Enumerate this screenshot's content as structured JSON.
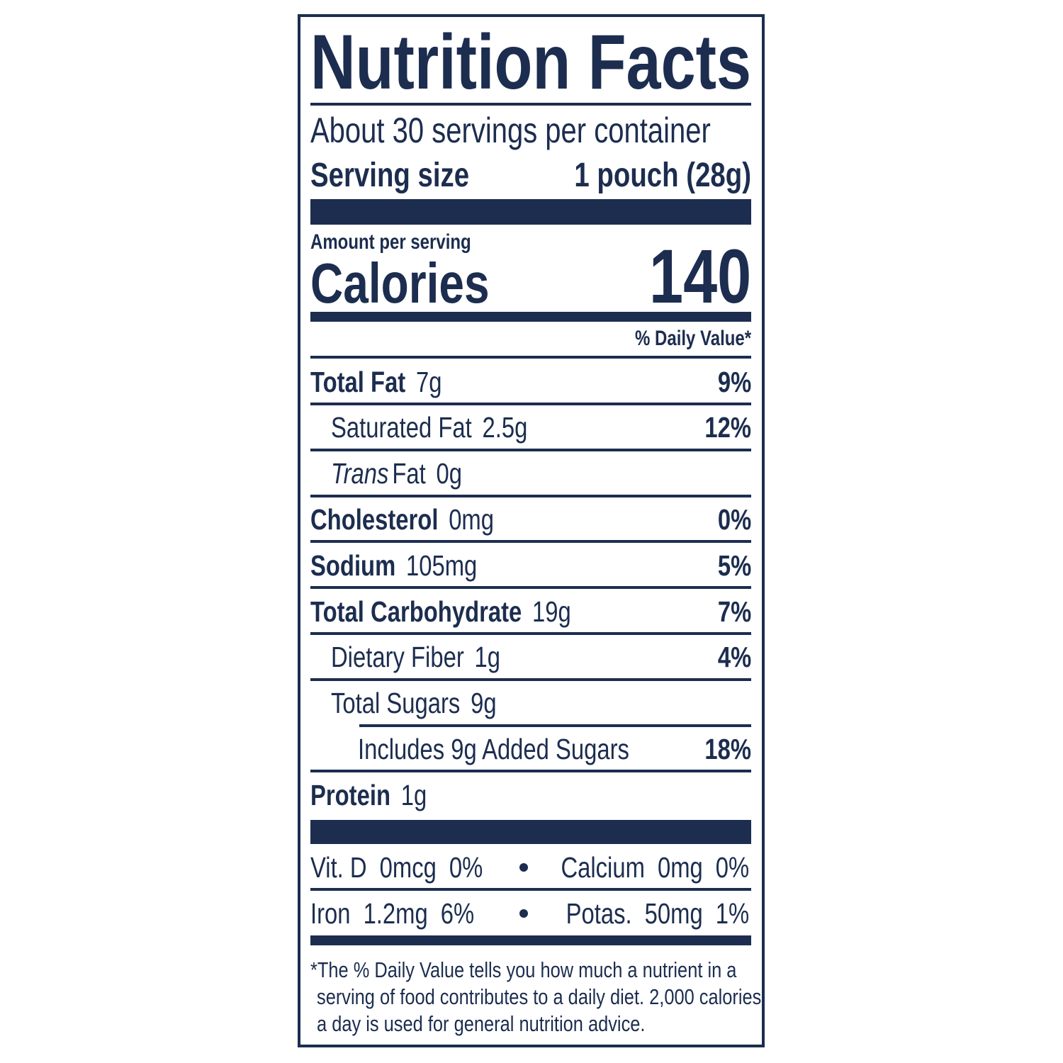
{
  "title": "Nutrition Facts",
  "servings": "About 30 servings per container",
  "serving_size": {
    "label": "Serving size",
    "value": "1 pouch (28g)"
  },
  "amount_per_serving": "Amount per serving",
  "calories": {
    "label": "Calories",
    "value": "140"
  },
  "daily_value_header": "% Daily Value*",
  "nutrients": [
    {
      "name": "Total Fat",
      "amount": "7g",
      "dv": "9%"
    },
    {
      "name": "Saturated Fat",
      "amount": "2.5g",
      "dv": "12%"
    },
    {
      "prefix": "Trans",
      "name": "Fat",
      "amount": "0g"
    },
    {
      "name": "Cholesterol",
      "amount": "0mg",
      "dv": "0%"
    },
    {
      "name": "Sodium",
      "amount": "105mg",
      "dv": "5%"
    },
    {
      "name": "Total Carbohydrate",
      "amount": "19g",
      "dv": "7%"
    },
    {
      "name": "Dietary Fiber",
      "amount": "1g",
      "dv": "4%"
    },
    {
      "name": "Total Sugars",
      "amount": "9g"
    },
    {
      "name": "Includes 9g Added Sugars",
      "dv": "18%"
    },
    {
      "name": "Protein",
      "amount": "1g"
    }
  ],
  "vitamins": [
    [
      {
        "name": "Vit. D",
        "amount": "0mcg",
        "dv": "0%"
      },
      {
        "name": "Calcium",
        "amount": "0mg",
        "dv": "0%"
      }
    ],
    [
      {
        "name": "Iron",
        "amount": "1.2mg",
        "dv": "6%"
      },
      {
        "name": "Potas.",
        "amount": "50mg",
        "dv": "1%"
      }
    ]
  ],
  "footnote": [
    "*The % Daily Value tells you how much a nutrient in a",
    "serving of food contributes to a daily diet. 2,000 calories",
    "a day is used for general nutrition advice."
  ]
}
